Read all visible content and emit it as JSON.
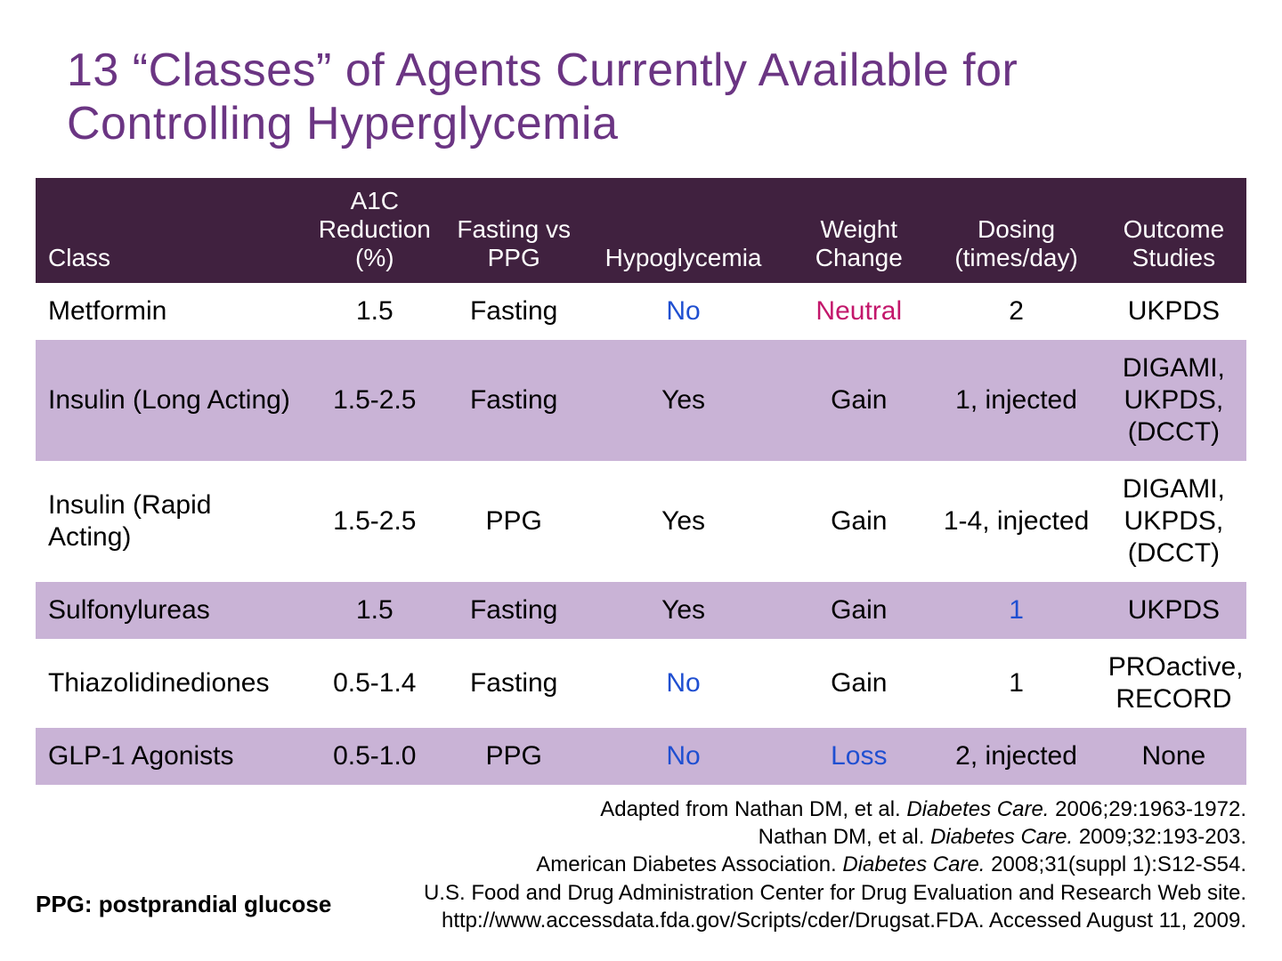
{
  "title": "13 “Classes” of Agents Currently Available for Controlling Hyperglycemia",
  "colors": {
    "title": "#6b3583",
    "header_bg": "#40213f",
    "header_fg": "#ffffff",
    "row_even_bg": "#ffffff",
    "row_odd_bg": "#c9b3d6",
    "text": "#000000",
    "blue": "#1f4fd1",
    "magenta": "#c3176b"
  },
  "table": {
    "col_widths_pct": [
      22,
      12,
      11,
      17,
      12,
      14,
      12
    ],
    "columns": [
      "Class",
      "A1C Reduction (%)",
      "Fasting vs PPG",
      "Hypoglycemia",
      "Weight Change",
      "Dosing (times/day)",
      "Outcome Studies"
    ],
    "rows": [
      {
        "cells": [
          "Metformin",
          "1.5",
          "Fasting",
          "No",
          "Neutral",
          "2",
          "UKPDS"
        ],
        "cell_colors": [
          null,
          null,
          null,
          "blue",
          "magenta",
          null,
          null
        ]
      },
      {
        "cells": [
          "Insulin (Long Acting)",
          "1.5-2.5",
          "Fasting",
          "Yes",
          "Gain",
          "1, injected",
          "DIGAMI, UKPDS, (DCCT)"
        ],
        "cell_colors": [
          null,
          null,
          null,
          null,
          null,
          null,
          null
        ]
      },
      {
        "cells": [
          "Insulin (Rapid Acting)",
          "1.5-2.5",
          "PPG",
          "Yes",
          "Gain",
          "1-4, injected",
          "DIGAMI, UKPDS, (DCCT)"
        ],
        "cell_colors": [
          null,
          null,
          null,
          null,
          null,
          null,
          null
        ]
      },
      {
        "cells": [
          "Sulfonylureas",
          "1.5",
          "Fasting",
          "Yes",
          "Gain",
          "1",
          "UKPDS"
        ],
        "cell_colors": [
          null,
          null,
          null,
          null,
          null,
          "blue",
          null
        ]
      },
      {
        "cells": [
          "Thiazolidinediones",
          "0.5-1.4",
          "Fasting",
          "No",
          "Gain",
          "1",
          "PROactive, RECORD"
        ],
        "cell_colors": [
          null,
          null,
          null,
          "blue",
          null,
          null,
          null
        ]
      },
      {
        "cells": [
          "GLP-1 Agonists",
          "0.5-1.0",
          "PPG",
          "No",
          "Loss",
          "2, injected",
          "None"
        ],
        "cell_colors": [
          null,
          null,
          null,
          "blue",
          "blue",
          null,
          null
        ]
      }
    ]
  },
  "footnote": "PPG: postprandial glucose",
  "references": [
    {
      "plain_before": "Adapted from Nathan DM, et al. ",
      "italic": "Diabetes Care.",
      "plain_after": " 2006;29:1963-1972."
    },
    {
      "plain_before": "Nathan DM, et al. ",
      "italic": "Diabetes Care.",
      "plain_after": " 2009;32:193-203."
    },
    {
      "plain_before": "American Diabetes Association. ",
      "italic": "Diabetes Care.",
      "plain_after": " 2008;31(suppl 1):S12-S54."
    },
    {
      "plain_before": "U.S. Food and Drug Administration Center for Drug Evaluation and Research Web site.",
      "italic": "",
      "plain_after": ""
    },
    {
      "plain_before": "http://www.accessdata.fda.gov/Scripts/cder/Drugsat.FDA. Accessed August 11, 2009.",
      "italic": "",
      "plain_after": ""
    }
  ]
}
